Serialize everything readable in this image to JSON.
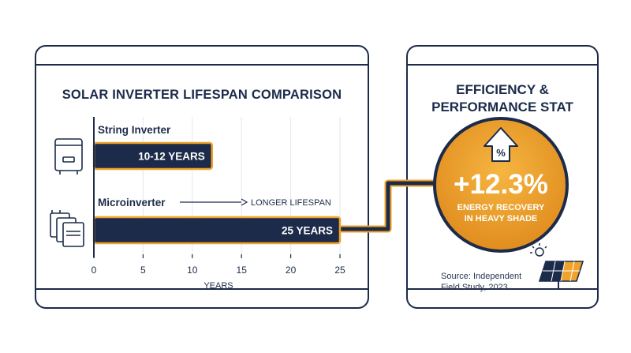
{
  "chart_data": {
    "type": "bar",
    "title": "SOLAR INVERTER LIFESPAN COMPARISON",
    "categories": [
      "String Inverter",
      "Microinverter"
    ],
    "values": [
      12,
      25
    ],
    "value_labels": [
      "10-12 YEARS",
      "25 YEARS"
    ],
    "range_low": [
      10,
      25
    ],
    "xlabel": "YEARS",
    "ylabel": "",
    "xlim": [
      0,
      25
    ],
    "xticks": [
      0,
      5,
      10,
      15,
      20,
      25
    ],
    "orientation": "horizontal",
    "grid": true,
    "annotation": "LONGER LIFESPAN"
  },
  "stat": {
    "title_line1": "EFFICIENCY &",
    "title_line2": "PERFORMANCE STAT",
    "badge_symbol": "%",
    "value": "+12.3%",
    "caption_line1": "ENERGY RECOVERY",
    "caption_line2": "IN HEAVY SHADE",
    "source_line1": "Source: Independent",
    "source_line2": "Field Study, 2023"
  },
  "icons": {
    "string": "string-inverter-icon",
    "micro": "microinverter-icon",
    "arrow": "up-arrow-icon",
    "panel": "solar-panel-icon"
  },
  "colors": {
    "navy": "#1c2b4a",
    "orange": "#f0a32a",
    "orange_dark": "#d9861a"
  }
}
